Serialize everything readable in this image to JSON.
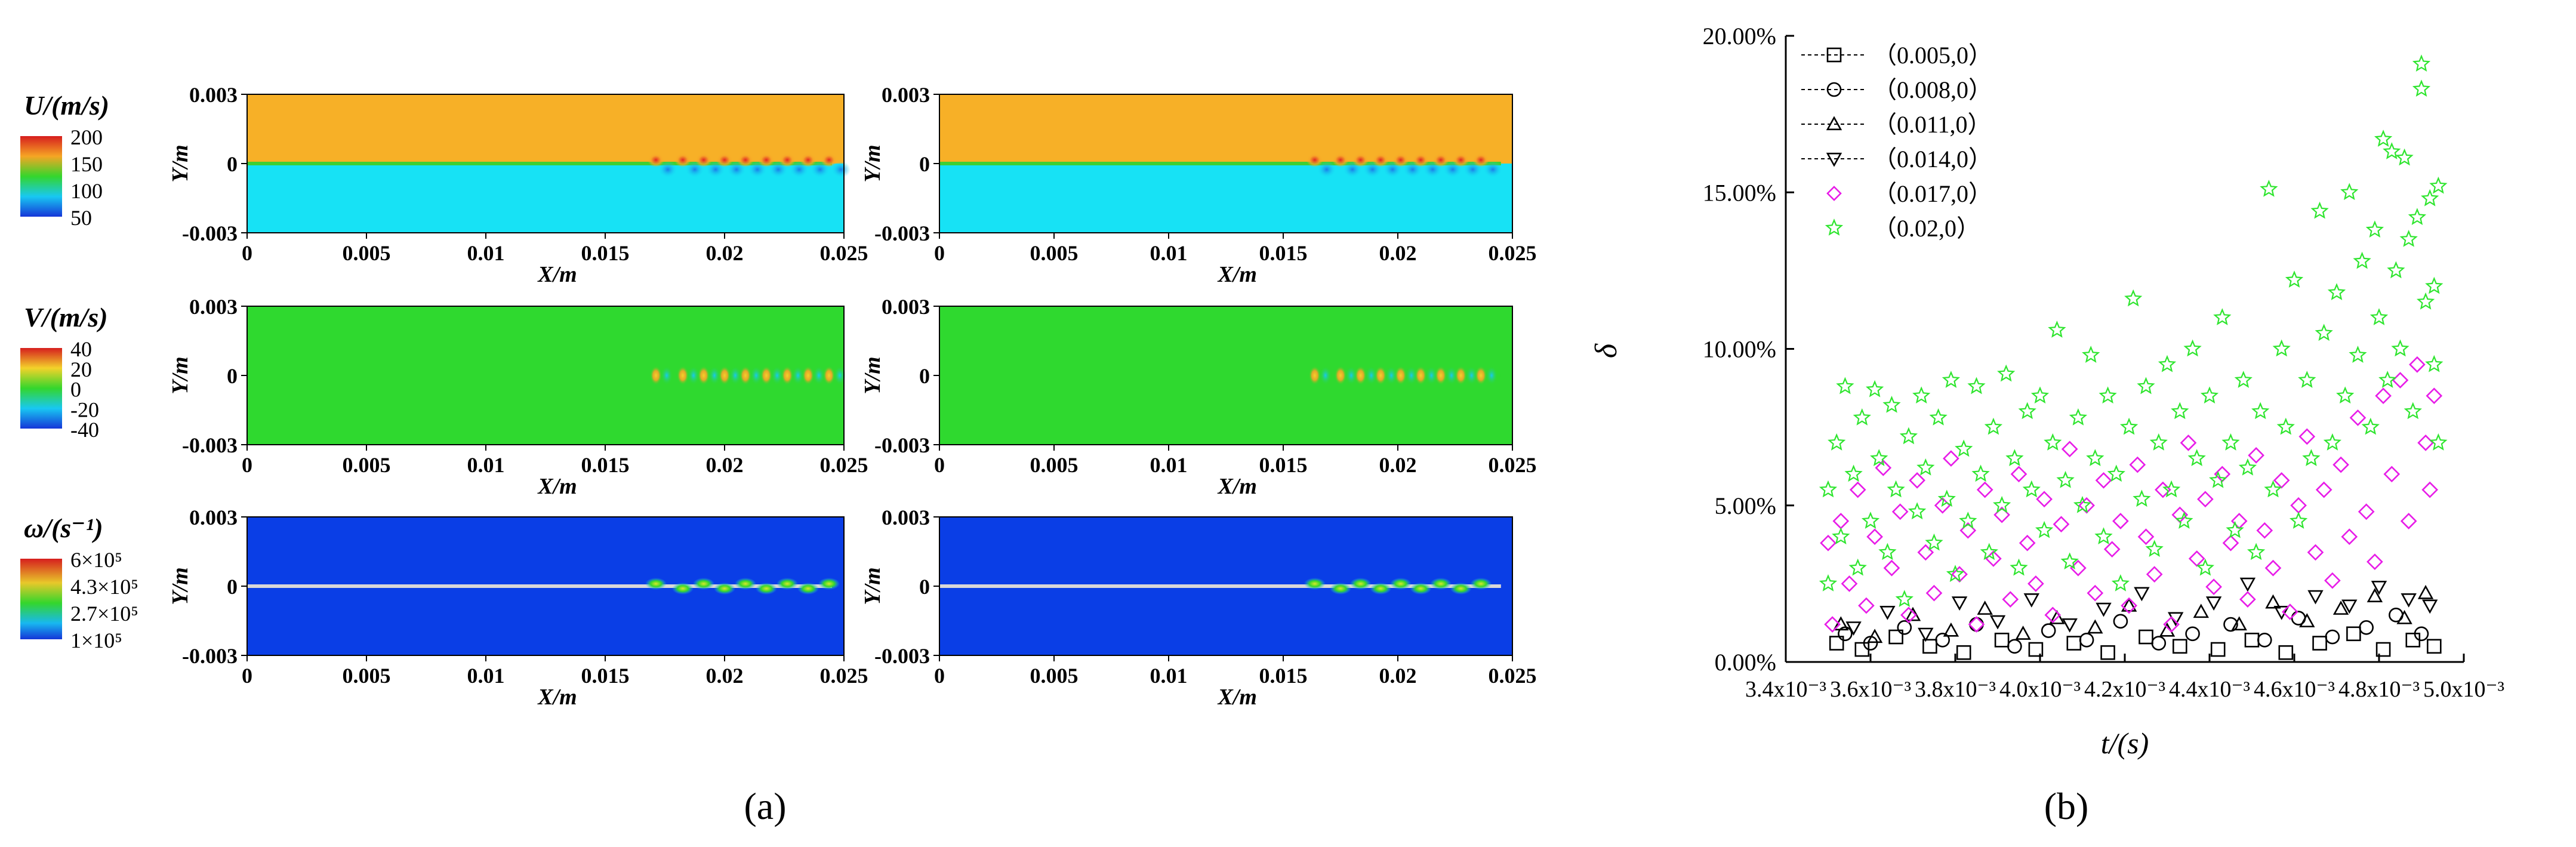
{
  "panel_labels": {
    "a": "(a)",
    "b": "(b)"
  },
  "panel_a": {
    "rows": [
      {
        "field": "U",
        "legend_title": "U/(m/s)",
        "legend_ticks": [
          "200",
          "150",
          "100",
          "50"
        ],
        "colors": {
          "top": "#f7b027",
          "bottom": "#17e2f5",
          "interface": "#3fcf33"
        }
      },
      {
        "field": "V",
        "legend_title": "V/(m/s)",
        "legend_ticks": [
          "40",
          "20",
          "0",
          "-20",
          "-40"
        ],
        "colors": {
          "top": "#2fd92f",
          "bottom": "#2fd92f",
          "interface": "#2fd92f"
        }
      },
      {
        "field": "omega",
        "legend_title": "ω/(s⁻¹)",
        "legend_ticks": [
          "6×10⁵",
          "4.3×10⁵",
          "2.7×10⁵",
          "1×10⁵"
        ],
        "colors": {
          "top": "#0a3ee6",
          "bottom": "#0a3ee6",
          "interface": "#d8d8d8"
        }
      }
    ],
    "x_ticks": [
      "0",
      "0.005",
      "0.01",
      "0.015",
      "0.02",
      "0.025"
    ],
    "y_ticks": [
      "0.003",
      "0",
      "-0.003"
    ],
    "x_label": "X/m",
    "y_label": "Y/m"
  },
  "chart_data": {
    "type": "scatter",
    "xlabel": "t/(s)",
    "ylabel": "δ",
    "xlim": [
      0.0034,
      0.005
    ],
    "ylim": [
      0,
      0.2
    ],
    "x_tick_labels": [
      "3.4x10⁻³",
      "3.6x10⁻³",
      "3.8x10⁻³",
      "4.0x10⁻³",
      "4.2x10⁻³",
      "4.4x10⁻³",
      "4.6x10⁻³",
      "4.8x10⁻³",
      "5.0x10⁻³"
    ],
    "x_tick_values": [
      0.0034,
      0.0036,
      0.0038,
      0.004,
      0.0042,
      0.0044,
      0.0046,
      0.0048,
      0.005
    ],
    "y_tick_labels": [
      "0.00%",
      "5.00%",
      "10.00%",
      "15.00%",
      "20.00%"
    ],
    "y_tick_values": [
      0,
      0.05,
      0.1,
      0.15,
      0.2
    ],
    "legend_position": "top-left",
    "grid": false,
    "series": [
      {
        "name": "（0.005,0）",
        "marker": "square",
        "line": "dashed",
        "color": "#000000",
        "points": [
          [
            0.00352,
            0.006
          ],
          [
            0.00358,
            0.004
          ],
          [
            0.00366,
            0.008
          ],
          [
            0.00374,
            0.005
          ],
          [
            0.00382,
            0.003
          ],
          [
            0.00391,
            0.007
          ],
          [
            0.00399,
            0.004
          ],
          [
            0.00408,
            0.006
          ],
          [
            0.00416,
            0.003
          ],
          [
            0.00425,
            0.008
          ],
          [
            0.00433,
            0.005
          ],
          [
            0.00442,
            0.004
          ],
          [
            0.0045,
            0.007
          ],
          [
            0.00458,
            0.003
          ],
          [
            0.00466,
            0.006
          ],
          [
            0.00474,
            0.009
          ],
          [
            0.00481,
            0.004
          ],
          [
            0.00488,
            0.007
          ],
          [
            0.00493,
            0.005
          ]
        ]
      },
      {
        "name": "（0.008,0）",
        "marker": "circle",
        "line": "dashed",
        "color": "#000000",
        "points": [
          [
            0.00354,
            0.009
          ],
          [
            0.0036,
            0.006
          ],
          [
            0.00368,
            0.011
          ],
          [
            0.00377,
            0.007
          ],
          [
            0.00385,
            0.012
          ],
          [
            0.00394,
            0.005
          ],
          [
            0.00402,
            0.01
          ],
          [
            0.00411,
            0.007
          ],
          [
            0.00419,
            0.013
          ],
          [
            0.00428,
            0.006
          ],
          [
            0.00436,
            0.009
          ],
          [
            0.00445,
            0.012
          ],
          [
            0.00453,
            0.007
          ],
          [
            0.00461,
            0.014
          ],
          [
            0.00469,
            0.008
          ],
          [
            0.00477,
            0.011
          ],
          [
            0.00484,
            0.015
          ],
          [
            0.0049,
            0.009
          ]
        ]
      },
      {
        "name": "（0.011,0）",
        "marker": "triangle-up",
        "line": "dashed",
        "color": "#000000",
        "points": [
          [
            0.00353,
            0.012
          ],
          [
            0.00361,
            0.008
          ],
          [
            0.0037,
            0.015
          ],
          [
            0.00379,
            0.01
          ],
          [
            0.00387,
            0.017
          ],
          [
            0.00396,
            0.009
          ],
          [
            0.00404,
            0.014
          ],
          [
            0.00413,
            0.011
          ],
          [
            0.00421,
            0.018
          ],
          [
            0.0043,
            0.01
          ],
          [
            0.00438,
            0.016
          ],
          [
            0.00447,
            0.012
          ],
          [
            0.00455,
            0.019
          ],
          [
            0.00463,
            0.013
          ],
          [
            0.00471,
            0.017
          ],
          [
            0.00479,
            0.021
          ],
          [
            0.00486,
            0.014
          ],
          [
            0.00491,
            0.022
          ]
        ]
      },
      {
        "name": "（0.014,0）",
        "marker": "triangle-down",
        "line": "dashed",
        "color": "#000000",
        "points": [
          [
            0.00356,
            0.011
          ],
          [
            0.00364,
            0.016
          ],
          [
            0.00373,
            0.009
          ],
          [
            0.00381,
            0.019
          ],
          [
            0.0039,
            0.013
          ],
          [
            0.00398,
            0.02
          ],
          [
            0.00407,
            0.012
          ],
          [
            0.00415,
            0.017
          ],
          [
            0.00424,
            0.022
          ],
          [
            0.00432,
            0.014
          ],
          [
            0.00441,
            0.019
          ],
          [
            0.00449,
            0.025
          ],
          [
            0.00457,
            0.016
          ],
          [
            0.00465,
            0.021
          ],
          [
            0.00473,
            0.018
          ],
          [
            0.0048,
            0.024
          ],
          [
            0.00487,
            0.02
          ],
          [
            0.00492,
            0.018
          ]
        ]
      },
      {
        "name": "（0.017,0）",
        "marker": "diamond",
        "line": "none",
        "color": "#e81ce8",
        "points": [
          [
            0.0035,
            0.038
          ],
          [
            0.00351,
            0.012
          ],
          [
            0.00353,
            0.045
          ],
          [
            0.00355,
            0.025
          ],
          [
            0.00357,
            0.055
          ],
          [
            0.00359,
            0.018
          ],
          [
            0.00361,
            0.04
          ],
          [
            0.00363,
            0.062
          ],
          [
            0.00365,
            0.03
          ],
          [
            0.00367,
            0.048
          ],
          [
            0.00369,
            0.015
          ],
          [
            0.00371,
            0.058
          ],
          [
            0.00373,
            0.035
          ],
          [
            0.00375,
            0.022
          ],
          [
            0.00377,
            0.05
          ],
          [
            0.00379,
            0.065
          ],
          [
            0.00381,
            0.028
          ],
          [
            0.00383,
            0.042
          ],
          [
            0.00385,
            0.012
          ],
          [
            0.00387,
            0.055
          ],
          [
            0.00389,
            0.033
          ],
          [
            0.00391,
            0.047
          ],
          [
            0.00393,
            0.02
          ],
          [
            0.00395,
            0.06
          ],
          [
            0.00397,
            0.038
          ],
          [
            0.00399,
            0.025
          ],
          [
            0.00401,
            0.052
          ],
          [
            0.00403,
            0.015
          ],
          [
            0.00405,
            0.044
          ],
          [
            0.00407,
            0.068
          ],
          [
            0.00409,
            0.03
          ],
          [
            0.00411,
            0.05
          ],
          [
            0.00413,
            0.022
          ],
          [
            0.00415,
            0.058
          ],
          [
            0.00417,
            0.036
          ],
          [
            0.00419,
            0.045
          ],
          [
            0.00421,
            0.018
          ],
          [
            0.00423,
            0.063
          ],
          [
            0.00425,
            0.04
          ],
          [
            0.00427,
            0.028
          ],
          [
            0.00429,
            0.055
          ],
          [
            0.00431,
            0.012
          ],
          [
            0.00433,
            0.047
          ],
          [
            0.00435,
            0.07
          ],
          [
            0.00437,
            0.033
          ],
          [
            0.00439,
            0.052
          ],
          [
            0.00441,
            0.024
          ],
          [
            0.00443,
            0.06
          ],
          [
            0.00445,
            0.038
          ],
          [
            0.00447,
            0.045
          ],
          [
            0.00449,
            0.02
          ],
          [
            0.00451,
            0.066
          ],
          [
            0.00453,
            0.042
          ],
          [
            0.00455,
            0.03
          ],
          [
            0.00457,
            0.058
          ],
          [
            0.00459,
            0.016
          ],
          [
            0.00461,
            0.05
          ],
          [
            0.00463,
            0.072
          ],
          [
            0.00465,
            0.035
          ],
          [
            0.00467,
            0.055
          ],
          [
            0.00469,
            0.026
          ],
          [
            0.00471,
            0.063
          ],
          [
            0.00473,
            0.04
          ],
          [
            0.00475,
            0.078
          ],
          [
            0.00477,
            0.048
          ],
          [
            0.00479,
            0.032
          ],
          [
            0.00481,
            0.085
          ],
          [
            0.00483,
            0.06
          ],
          [
            0.00485,
            0.09
          ],
          [
            0.00487,
            0.045
          ],
          [
            0.00489,
            0.095
          ],
          [
            0.00491,
            0.07
          ],
          [
            0.00492,
            0.055
          ],
          [
            0.00493,
            0.085
          ]
        ]
      },
      {
        "name": "（0.02,0）",
        "marker": "star",
        "line": "none",
        "color": "#2ee52e",
        "points": [
          [
            0.0035,
            0.055
          ],
          [
            0.0035,
            0.025
          ],
          [
            0.00352,
            0.07
          ],
          [
            0.00353,
            0.04
          ],
          [
            0.00354,
            0.088
          ],
          [
            0.00356,
            0.06
          ],
          [
            0.00357,
            0.03
          ],
          [
            0.00358,
            0.078
          ],
          [
            0.0036,
            0.045
          ],
          [
            0.00361,
            0.087
          ],
          [
            0.00362,
            0.065
          ],
          [
            0.00364,
            0.035
          ],
          [
            0.00365,
            0.082
          ],
          [
            0.00366,
            0.055
          ],
          [
            0.00368,
            0.02
          ],
          [
            0.00369,
            0.072
          ],
          [
            0.00371,
            0.048
          ],
          [
            0.00372,
            0.085
          ],
          [
            0.00373,
            0.062
          ],
          [
            0.00375,
            0.038
          ],
          [
            0.00376,
            0.078
          ],
          [
            0.00378,
            0.052
          ],
          [
            0.00379,
            0.09
          ],
          [
            0.0038,
            0.028
          ],
          [
            0.00382,
            0.068
          ],
          [
            0.00383,
            0.045
          ],
          [
            0.00385,
            0.088
          ],
          [
            0.00386,
            0.06
          ],
          [
            0.00388,
            0.035
          ],
          [
            0.00389,
            0.075
          ],
          [
            0.00391,
            0.05
          ],
          [
            0.00392,
            0.092
          ],
          [
            0.00394,
            0.065
          ],
          [
            0.00395,
            0.03
          ],
          [
            0.00397,
            0.08
          ],
          [
            0.00398,
            0.055
          ],
          [
            0.004,
            0.085
          ],
          [
            0.00401,
            0.042
          ],
          [
            0.00403,
            0.07
          ],
          [
            0.00404,
            0.106
          ],
          [
            0.00406,
            0.058
          ],
          [
            0.00407,
            0.032
          ],
          [
            0.00409,
            0.078
          ],
          [
            0.0041,
            0.05
          ],
          [
            0.00412,
            0.098
          ],
          [
            0.00413,
            0.065
          ],
          [
            0.00415,
            0.04
          ],
          [
            0.00416,
            0.085
          ],
          [
            0.00418,
            0.06
          ],
          [
            0.00419,
            0.025
          ],
          [
            0.00421,
            0.075
          ],
          [
            0.00422,
            0.116
          ],
          [
            0.00424,
            0.052
          ],
          [
            0.00425,
            0.088
          ],
          [
            0.00427,
            0.036
          ],
          [
            0.00428,
            0.07
          ],
          [
            0.0043,
            0.095
          ],
          [
            0.00431,
            0.055
          ],
          [
            0.00433,
            0.08
          ],
          [
            0.00434,
            0.045
          ],
          [
            0.00436,
            0.1
          ],
          [
            0.00437,
            0.065
          ],
          [
            0.00439,
            0.03
          ],
          [
            0.0044,
            0.085
          ],
          [
            0.00442,
            0.058
          ],
          [
            0.00443,
            0.11
          ],
          [
            0.00445,
            0.07
          ],
          [
            0.00446,
            0.042
          ],
          [
            0.00448,
            0.09
          ],
          [
            0.00449,
            0.062
          ],
          [
            0.00451,
            0.035
          ],
          [
            0.00452,
            0.08
          ],
          [
            0.00454,
            0.151
          ],
          [
            0.00455,
            0.055
          ],
          [
            0.00457,
            0.1
          ],
          [
            0.00458,
            0.075
          ],
          [
            0.0046,
            0.122
          ],
          [
            0.00461,
            0.045
          ],
          [
            0.00463,
            0.09
          ],
          [
            0.00464,
            0.065
          ],
          [
            0.00466,
            0.144
          ],
          [
            0.00467,
            0.105
          ],
          [
            0.00469,
            0.07
          ],
          [
            0.0047,
            0.118
          ],
          [
            0.00472,
            0.085
          ],
          [
            0.00473,
            0.15
          ],
          [
            0.00475,
            0.098
          ],
          [
            0.00476,
            0.128
          ],
          [
            0.00478,
            0.075
          ],
          [
            0.00479,
            0.138
          ],
          [
            0.0048,
            0.11
          ],
          [
            0.00481,
            0.167
          ],
          [
            0.00482,
            0.09
          ],
          [
            0.00483,
            0.163
          ],
          [
            0.00484,
            0.125
          ],
          [
            0.00485,
            0.1
          ],
          [
            0.00486,
            0.161
          ],
          [
            0.00487,
            0.135
          ],
          [
            0.00488,
            0.08
          ],
          [
            0.00489,
            0.142
          ],
          [
            0.0049,
            0.191
          ],
          [
            0.0049,
            0.183
          ],
          [
            0.00491,
            0.115
          ],
          [
            0.00492,
            0.148
          ],
          [
            0.00493,
            0.12
          ],
          [
            0.00493,
            0.095
          ],
          [
            0.00494,
            0.152
          ],
          [
            0.00494,
            0.07
          ]
        ]
      }
    ]
  }
}
